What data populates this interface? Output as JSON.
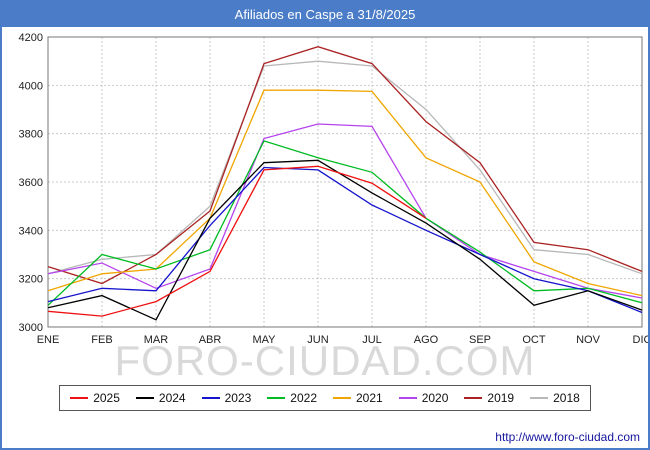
{
  "title": "Afiliados en Caspe a 31/8/2025",
  "watermark": "FORO-CIUDAD.COM",
  "footer_url": "http://www.foro-ciudad.com",
  "colors": {
    "titlebar": "#4a7cc7",
    "frame": "#4a7cc7",
    "grid": "#c9c9c9",
    "axis_text": "#222222"
  },
  "chart_data": {
    "type": "line",
    "title": "Afiliados en Caspe a 31/8/2025",
    "xlabel": "",
    "ylabel": "",
    "categories": [
      "ENE",
      "FEB",
      "MAR",
      "ABR",
      "MAY",
      "JUN",
      "JUL",
      "AGO",
      "SEP",
      "OCT",
      "NOV",
      "DIC"
    ],
    "ylim": [
      3000,
      4200
    ],
    "ytick_step": 200,
    "grid": true,
    "legend_position": "bottom",
    "series": [
      {
        "name": "2025",
        "color": "#ee1111",
        "values": [
          3065,
          3045,
          3105,
          3230,
          3650,
          3665,
          3595,
          3450,
          null,
          null,
          null,
          null
        ]
      },
      {
        "name": "2024",
        "color": "#000000",
        "values": [
          3080,
          3130,
          3030,
          3450,
          3680,
          3690,
          3555,
          3430,
          3280,
          3090,
          3150,
          3070
        ]
      },
      {
        "name": "2023",
        "color": "#1414cc",
        "values": [
          3105,
          3160,
          3150,
          3420,
          3660,
          3650,
          3505,
          3400,
          3300,
          3200,
          3150,
          3060
        ]
      },
      {
        "name": "2022",
        "color": "#00bb22",
        "values": [
          3090,
          3300,
          3240,
          3320,
          3770,
          3700,
          3640,
          3450,
          3310,
          3150,
          3160,
          3100
        ]
      },
      {
        "name": "2021",
        "color": "#f0a500",
        "values": [
          3150,
          3220,
          3240,
          3450,
          3980,
          3980,
          3975,
          3700,
          3600,
          3270,
          3180,
          3130
        ]
      },
      {
        "name": "2020",
        "color": "#b544ee",
        "values": [
          3220,
          3265,
          3160,
          3240,
          3780,
          3840,
          3830,
          3450,
          3300,
          3230,
          3160,
          3120
        ]
      },
      {
        "name": "2019",
        "color": "#aa2222",
        "values": [
          3250,
          3180,
          3300,
          3480,
          4090,
          4160,
          4090,
          3850,
          3680,
          3350,
          3320,
          3230
        ]
      },
      {
        "name": "2018",
        "color": "#b8b8b8",
        "values": [
          3220,
          3280,
          3300,
          3500,
          4080,
          4100,
          4080,
          3900,
          3650,
          3320,
          3300,
          3220
        ]
      }
    ]
  }
}
